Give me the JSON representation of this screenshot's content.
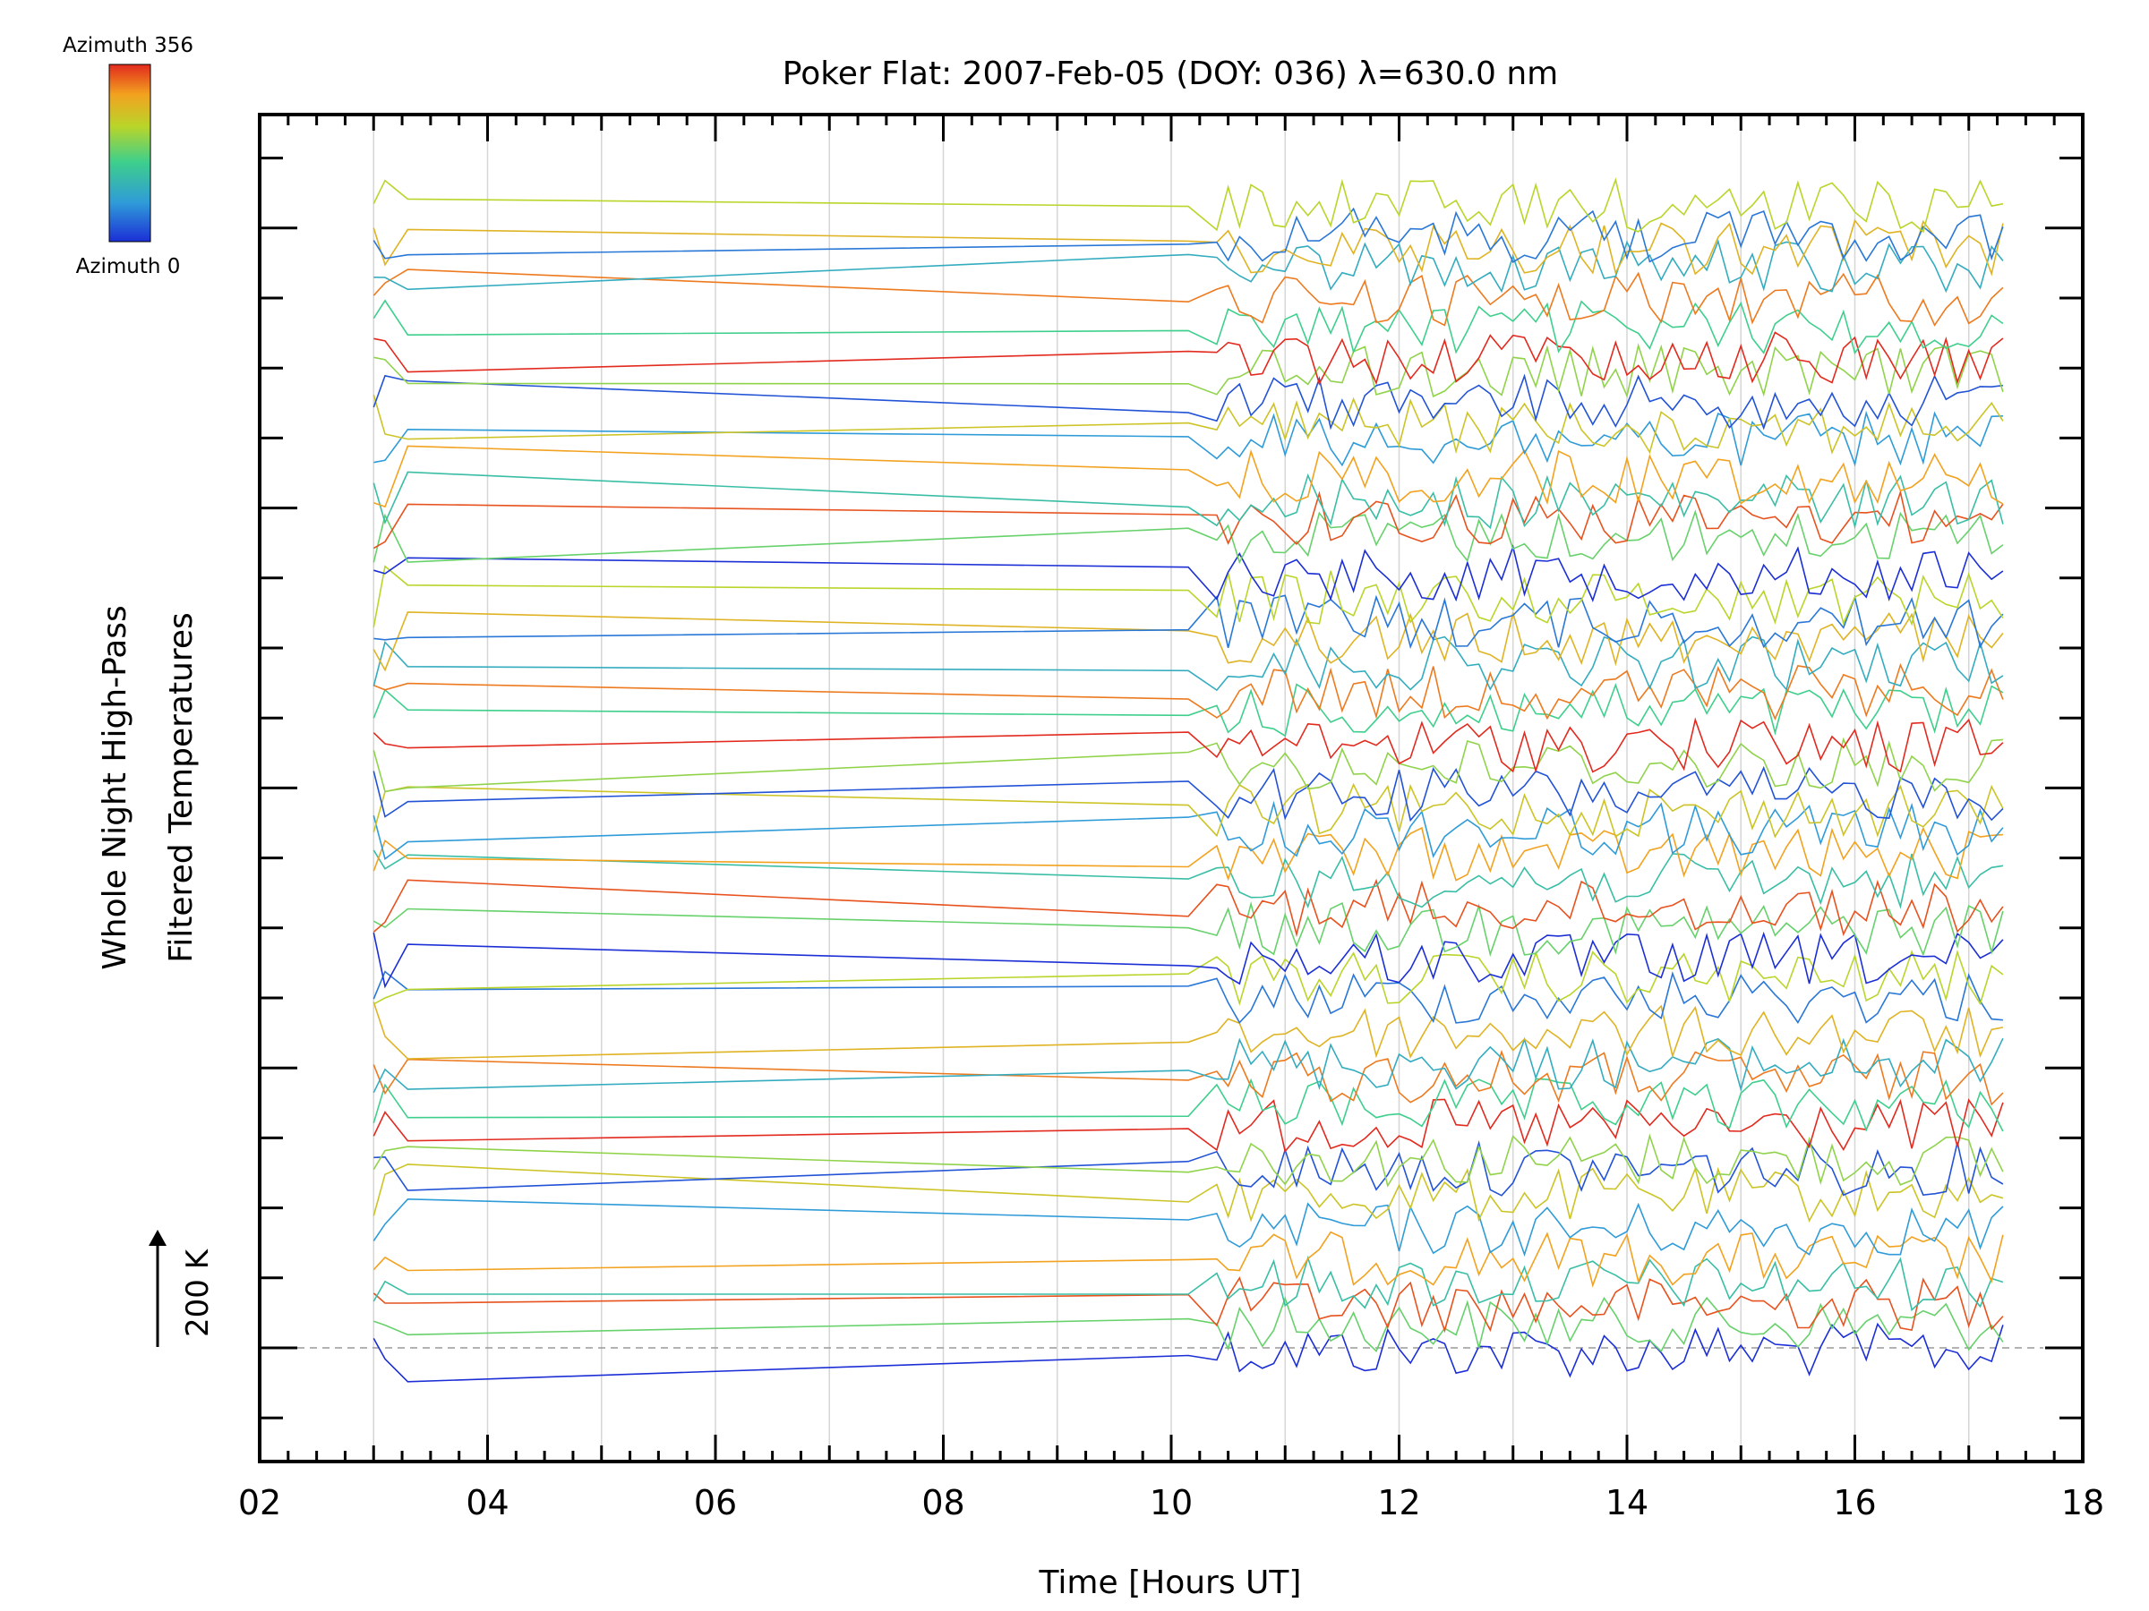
{
  "chart_data": {
    "type": "line",
    "title": "Poker Flat: 2007-Feb-05 (DOY: 036) λ=630.0 nm",
    "xlabel": "Time [Hours UT]",
    "ylabel_line1": "Whole Night High-Pass",
    "ylabel_line2": "Filtered Temperatures",
    "xlim": [
      2,
      18
    ],
    "x_tick_labels": [
      "02",
      "04",
      "06",
      "08",
      "10",
      "12",
      "14",
      "16",
      "18"
    ],
    "x_tick_values": [
      2,
      4,
      6,
      8,
      10,
      12,
      14,
      16,
      18
    ],
    "x_grid_values": [
      3,
      4,
      5,
      6,
      7,
      8,
      9,
      10,
      11,
      12,
      13,
      14,
      15,
      16,
      17
    ],
    "data_time_range": [
      3.0,
      17.3
    ],
    "n_series": 48,
    "series_spacing_K": 50,
    "scale_bar_label": "200 K",
    "grid": true,
    "legend": {
      "type": "colorbar",
      "placement": "top-left",
      "top_label": "Azimuth 356",
      "bottom_label": "Azimuth 0",
      "colormap": [
        "#1c2fd6",
        "#2f9bd8",
        "#3ecf8c",
        "#b9d52a",
        "#f2a21f",
        "#e22a1e"
      ]
    },
    "colors": {
      "blue": "#1f3fe0",
      "light_blue": "#2f8fe0",
      "cyan": "#2ab8c8",
      "green": "#55cc55",
      "yellow_green": "#b5d52a",
      "orange": "#f09020",
      "red": "#e02020"
    }
  }
}
